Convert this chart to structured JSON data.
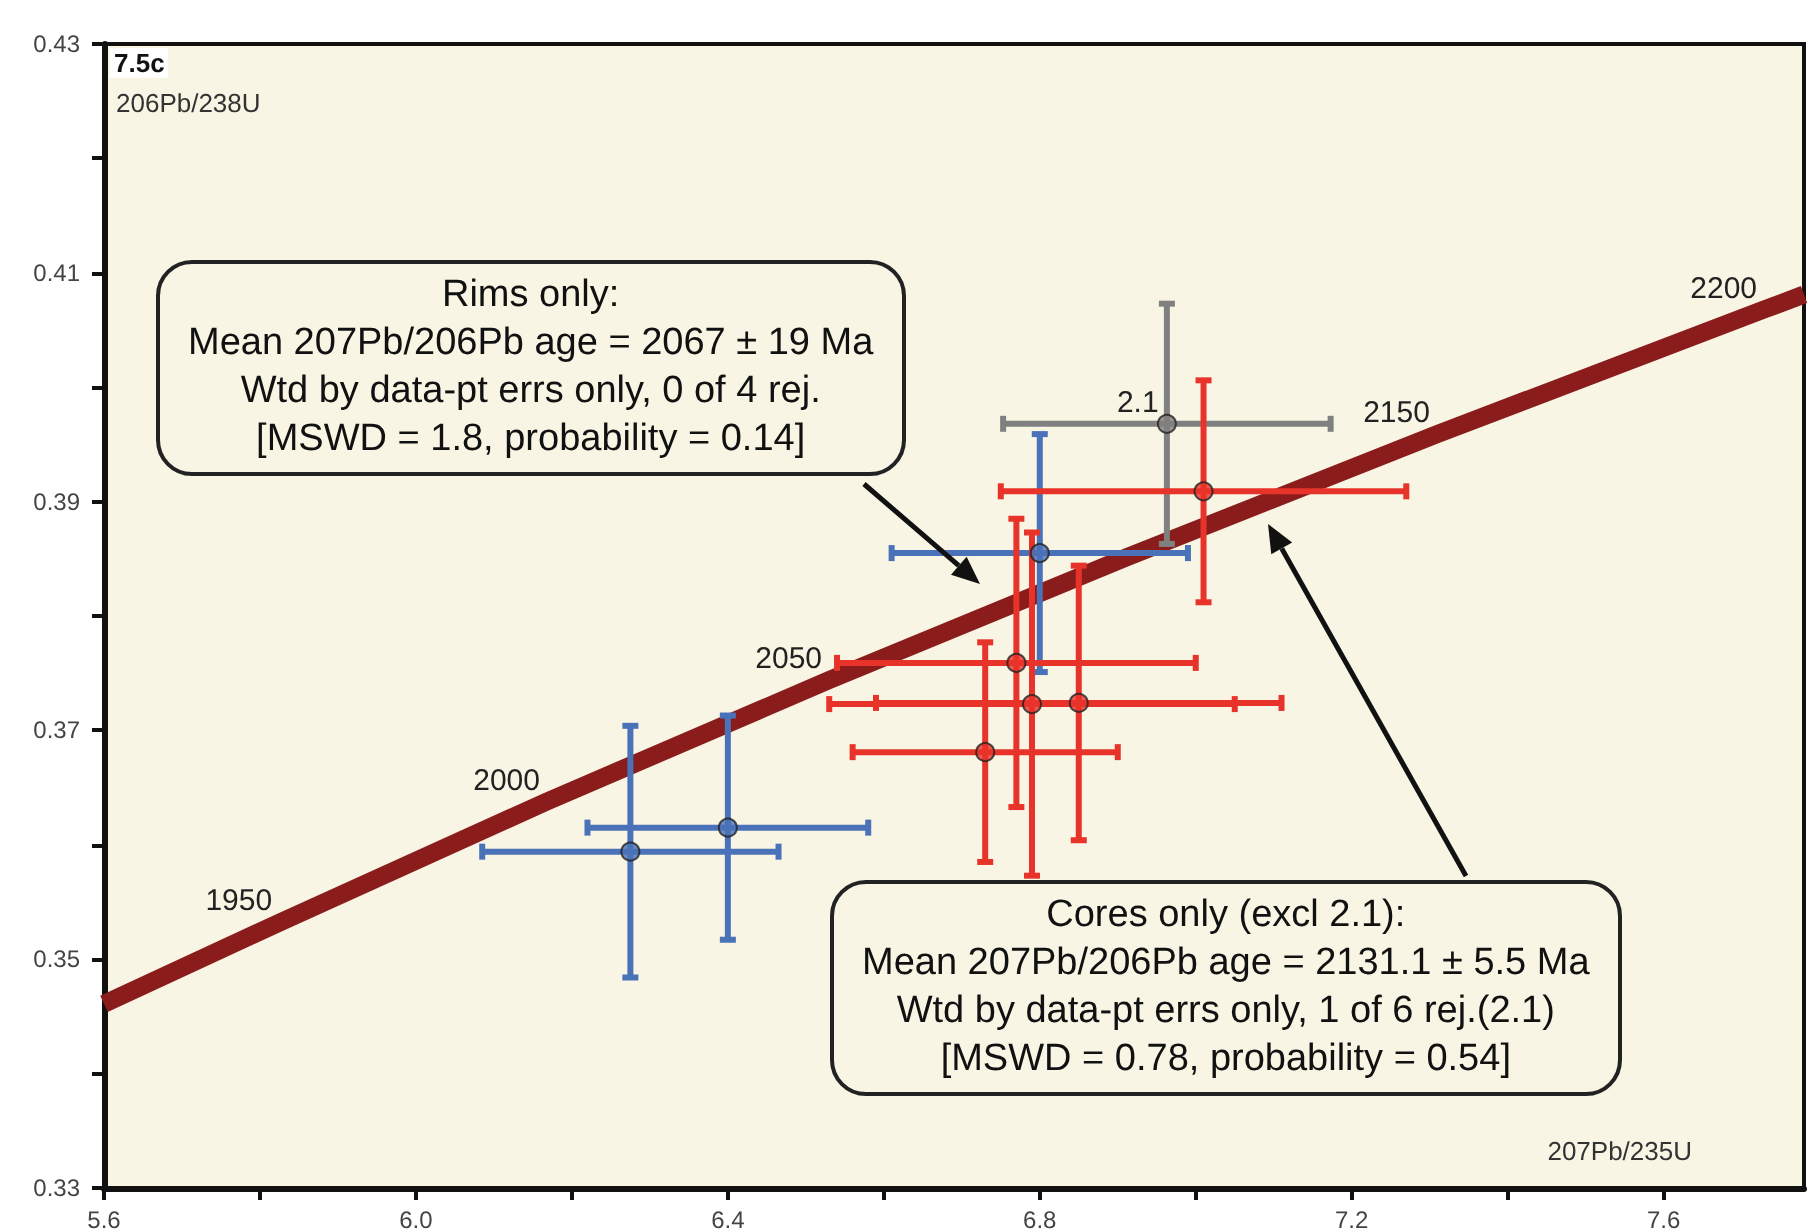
{
  "chart_data": {
    "type": "scatter",
    "xlabel": "207Pb/235U",
    "ylabel": "206Pb/238U",
    "xlim": [
      5.6,
      7.78
    ],
    "xticks": [
      5.6,
      {
        "value": 5.8,
        "label": null
      },
      {
        "value": 6,
        "label": "6.0"
      },
      {
        "value": 6.2,
        "label": null
      },
      6.4,
      {
        "value": 6.6,
        "label": null
      },
      6.8,
      {
        "value": 7.0,
        "label": null
      },
      7.2,
      {
        "value": 7.4,
        "label": null
      },
      7.6
    ],
    "ylim": [
      0.33,
      0.43
    ],
    "yticks": [
      0.33,
      {
        "value": 0.34,
        "label": null
      },
      0.35,
      {
        "value": 0.36,
        "label": null
      },
      0.37,
      {
        "value": 0.38,
        "label": null
      },
      0.39,
      {
        "value": 0.4,
        "label": null
      },
      0.41,
      {
        "value": 0.42,
        "label": null
      },
      0.43
    ],
    "grid": false,
    "marker": "circle",
    "series": [
      {
        "type": "line",
        "color": "#8b1c1c",
        "marker": "none",
        "line_style": "solid",
        "x": [
          5.6,
          5.825,
          6.1684,
          6.5301,
          6.9103,
          7.3096,
          7.7291,
          7.78
        ],
        "values": [
          0.3461,
          0.3532,
          0.3638,
          0.3744,
          0.3851,
          0.3959,
          0.4068,
          0.4081
        ]
      },
      {
        "color": "#4a72b8",
        "x": [
          6.275,
          6.4,
          6.8
        ],
        "values": [
          0.3594,
          0.3615,
          0.3855
        ],
        "xerrors": [
          0.19,
          0.18,
          0.19
        ],
        "errors": [
          0.011,
          0.0098,
          0.0104
        ]
      },
      {
        "color": "#808080",
        "x": [
          6.963
        ],
        "values": [
          0.3968
        ],
        "xerrors": [
          0.21
        ],
        "errors": [
          0.0105
        ]
      },
      {
        "color": "#e8332a",
        "x": [
          6.77,
          7.01,
          6.79,
          6.73,
          6.85
        ],
        "values": [
          0.3759,
          0.3909,
          0.3723,
          0.3681,
          0.3724
        ],
        "xerrors": [
          0.23,
          0.26,
          0.26,
          0.17,
          0.26
        ],
        "errors": [
          0.0126,
          0.0097,
          0.015,
          0.0096,
          0.012
        ]
      }
    ],
    "annotations": [
      "7.5c",
      "Rims only:\nMean 207Pb/206Pb age = 2067 ± 19 Ma\nWtd by data-pt errs only, 0 of 4 rej.\n[MSWD = 1.8, probability = 0.14]",
      "Cores only (excl 2.1):\nMean 207Pb/206Pb age = 2131.1 ± 5.5 Ma\nWtd by data-pt errs only, 1 of 6 rej.(2.1)\n[MSWD = 0.78, probability = 0.54]",
      {
        "text": "1950",
        "x": 5.825,
        "y": 0.3532
      },
      {
        "text": "2000",
        "x": 6.1684,
        "y": 0.3638
      },
      {
        "text": "2050",
        "x": 6.5301,
        "y": 0.3744
      },
      {
        "text": "2150",
        "x": 7.3096,
        "y": 0.3959
      },
      {
        "text": "2200",
        "x": 7.7291,
        "y": 0.4068
      },
      {
        "text": "2.1",
        "x": 6.963,
        "y": 0.3968
      }
    ]
  }
}
